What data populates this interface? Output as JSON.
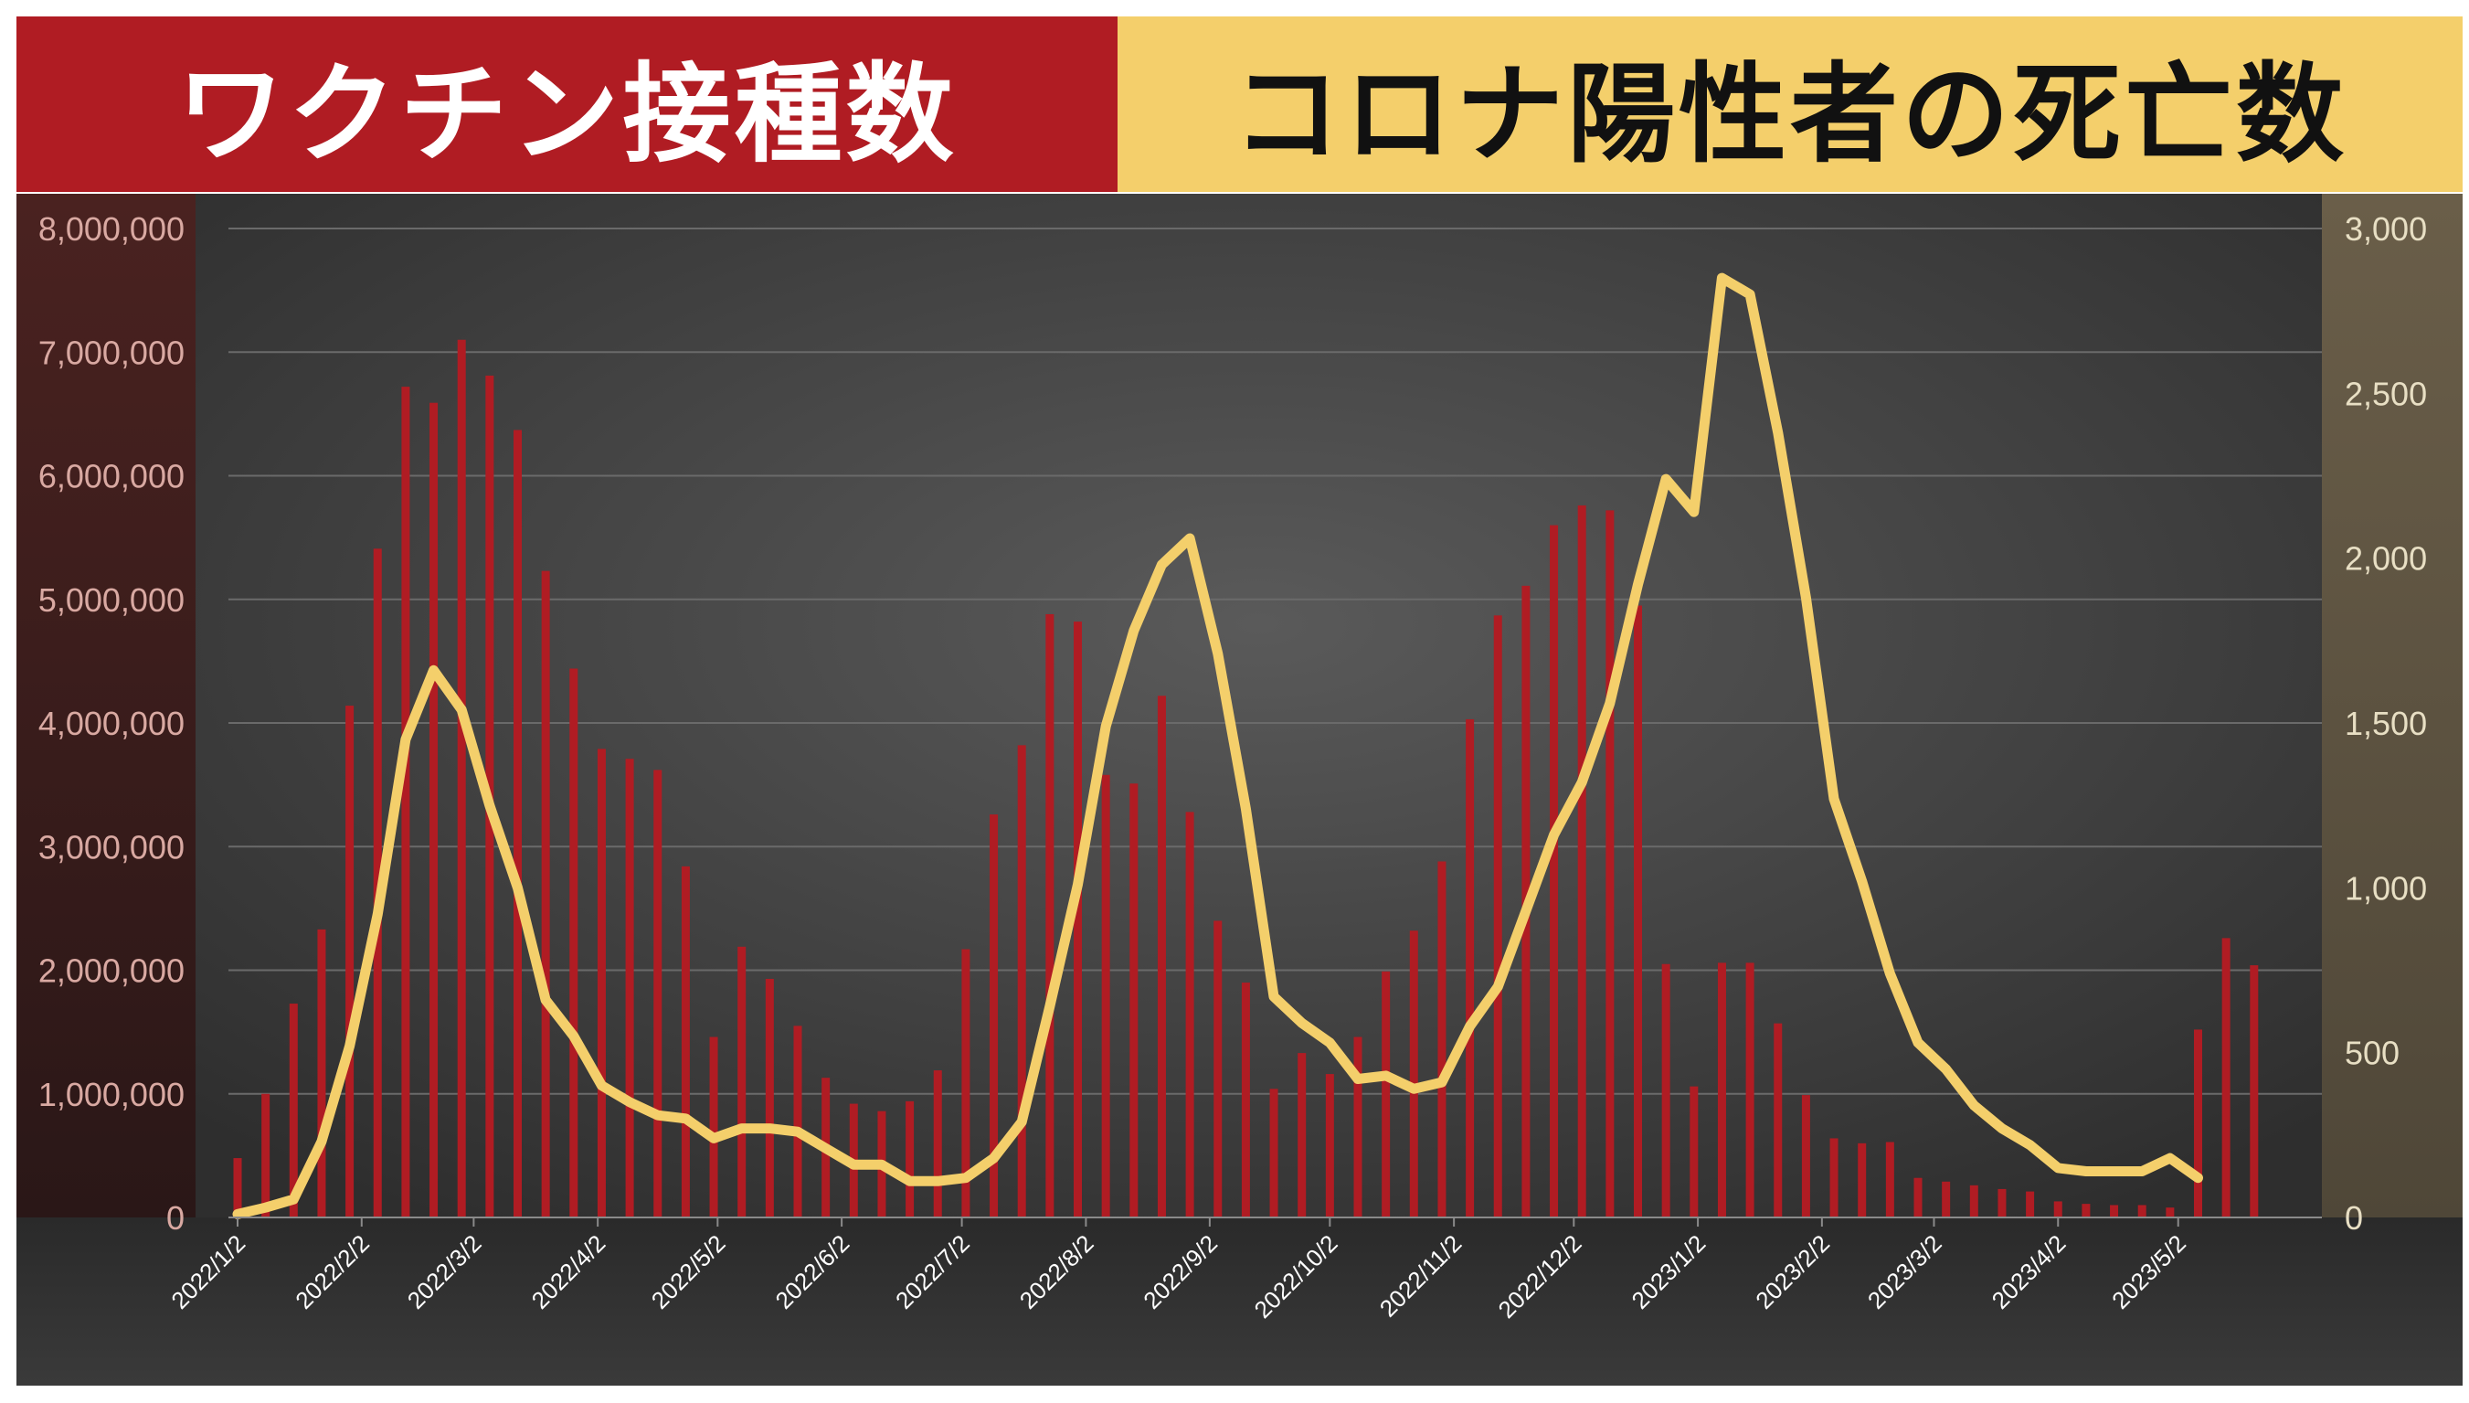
{
  "header": {
    "left_title": "ワクチン接種数",
    "right_title": "コロナ陽性者の死亡数"
  },
  "colors": {
    "bar": "#b01c23",
    "line": "#f4cf6b",
    "left_banner": "#b01c23",
    "right_banner": "#f4cf6b",
    "left_axis_panel": "#3a1d1b",
    "right_axis_panel": "#5e5441",
    "plot_background": "#3f3f3f"
  },
  "chart_data": {
    "type": "bar",
    "x_tick_labels": [
      "2022/1/2",
      "2022/2/2",
      "2022/3/2",
      "2022/4/2",
      "2022/5/2",
      "2022/6/2",
      "2022/7/2",
      "2022/8/2",
      "2022/9/2",
      "2022/10/2",
      "2022/11/2",
      "2022/12/2",
      "2023/1/2",
      "2023/2/2",
      "2023/3/2",
      "2023/4/2",
      "2023/5/2"
    ],
    "x_tick_week_index": [
      0,
      4.43,
      8.43,
      12.86,
      17.14,
      21.57,
      25.86,
      30.29,
      34.71,
      39,
      43.43,
      47.71,
      52.14,
      56.57,
      60.57,
      65,
      69.29
    ],
    "y_left": {
      "min": 0,
      "max": 8000000,
      "ticks": [
        "0",
        "1,000,000",
        "2,000,000",
        "3,000,000",
        "4,000,000",
        "5,000,000",
        "6,000,000",
        "7,000,000",
        "8,000,000"
      ]
    },
    "y_right": {
      "min": 0,
      "max": 3000,
      "ticks": [
        "0",
        "500",
        "1,000",
        "1,500",
        "2,000",
        "2,500",
        "3,000"
      ]
    },
    "grid": true,
    "series": [
      {
        "type": "bar",
        "axis": "left",
        "values": [
          480000,
          1000000,
          1730000,
          2330000,
          4140000,
          5410000,
          6720000,
          6590000,
          7100000,
          6810000,
          6370000,
          5230000,
          4440000,
          3790000,
          3710000,
          3620000,
          2840000,
          1460000,
          2190000,
          1930000,
          1550000,
          1130000,
          920000,
          860000,
          940000,
          1190000,
          2170000,
          3260000,
          3820000,
          4880000,
          4820000,
          3580000,
          3510000,
          4220000,
          3280000,
          2400000,
          1900000,
          1040000,
          1330000,
          1160000,
          1460000,
          1990000,
          2320000,
          2880000,
          4030000,
          4870000,
          5110000,
          5600000,
          5760000,
          5720000,
          4950000,
          2050000,
          1060000,
          2060000,
          2060000,
          1570000,
          990000,
          640000,
          600000,
          610000,
          320000,
          290000,
          260000,
          230000,
          210000,
          130000,
          110000,
          100000,
          100000,
          80000,
          1520000,
          2260000,
          2040000
        ]
      },
      {
        "type": "line",
        "axis": "right",
        "values": [
          10,
          30,
          55,
          230,
          520,
          920,
          1450,
          1660,
          1540,
          1250,
          1000,
          660,
          550,
          400,
          350,
          310,
          300,
          240,
          270,
          270,
          260,
          210,
          160,
          160,
          110,
          110,
          120,
          180,
          290,
          640,
          1010,
          1490,
          1780,
          1980,
          2060,
          1710,
          1240,
          670,
          590,
          530,
          420,
          430,
          390,
          410,
          580,
          700,
          930,
          1160,
          1320,
          1560,
          1920,
          2240,
          2140,
          2850,
          2800,
          2380,
          1880,
          1270,
          1020,
          740,
          530,
          450,
          340,
          270,
          220,
          150,
          140,
          140,
          140,
          180,
          120
        ]
      }
    ]
  }
}
